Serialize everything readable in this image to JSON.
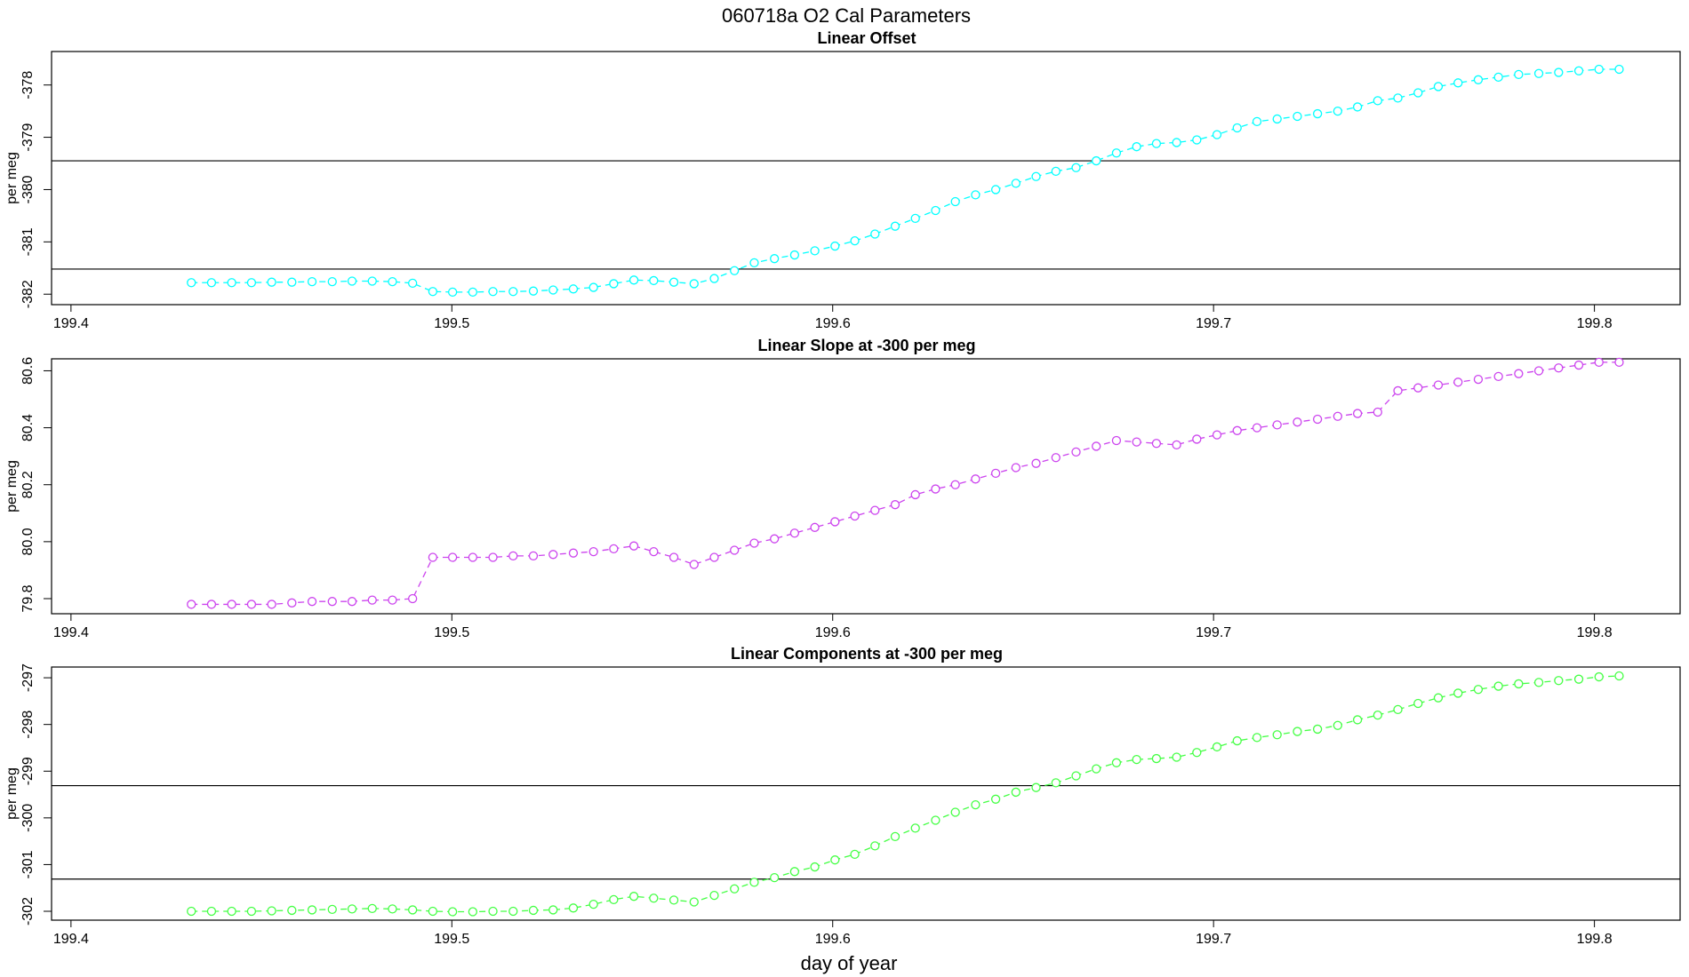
{
  "title": "060718a   O2 Cal Parameters",
  "xlabel": "day of year",
  "chart_data": [
    {
      "type": "line",
      "title": "Linear Offset",
      "ylabel": "per meg",
      "x": [
        199.4316,
        199.4369,
        199.4422,
        199.4474,
        199.4527,
        199.458,
        199.4633,
        199.4686,
        199.4738,
        199.4791,
        199.4844,
        199.4897,
        199.495,
        199.5002,
        199.5055,
        199.5108,
        199.5161,
        199.5214,
        199.5266,
        199.5319,
        199.5372,
        199.5425,
        199.5478,
        199.553,
        199.5583,
        199.5636,
        199.5689,
        199.5742,
        199.5794,
        199.5847,
        199.59,
        199.5953,
        199.6006,
        199.6058,
        199.6111,
        199.6164,
        199.6217,
        199.627,
        199.6322,
        199.6375,
        199.6428,
        199.6481,
        199.6534,
        199.6586,
        199.6639,
        199.6692,
        199.6745,
        199.6798,
        199.685,
        199.6903,
        199.6956,
        199.7009,
        199.7062,
        199.7114,
        199.7167,
        199.722,
        199.7273,
        199.7326,
        199.7378,
        199.7431,
        199.7484,
        199.7537,
        199.759,
        199.7642,
        199.7695,
        199.7748,
        199.7801,
        199.7854,
        199.7906,
        199.7959,
        199.8012,
        199.8065
      ],
      "series": [
        {
          "color": "#00ffff",
          "values": [
            -381.78,
            -381.78,
            -381.78,
            -381.78,
            -381.77,
            -381.77,
            -381.76,
            -381.76,
            -381.75,
            -381.75,
            -381.76,
            -381.79,
            -381.95,
            -381.96,
            -381.96,
            -381.95,
            -381.95,
            -381.94,
            -381.92,
            -381.9,
            -381.87,
            -381.8,
            -381.73,
            -381.74,
            -381.77,
            -381.8,
            -381.7,
            -381.55,
            -381.4,
            -381.32,
            -381.25,
            -381.17,
            -381.08,
            -380.98,
            -380.85,
            -380.7,
            -380.55,
            -380.4,
            -380.23,
            -380.1,
            -380.0,
            -379.88,
            -379.75,
            -379.65,
            -379.58,
            -379.45,
            -379.3,
            -379.18,
            -379.12,
            -379.1,
            -379.05,
            -378.95,
            -378.82,
            -378.7,
            -378.65,
            -378.6,
            -378.55,
            -378.5,
            -378.42,
            -378.3,
            -378.25,
            -378.15,
            -378.03,
            -377.96,
            -377.9,
            -377.85,
            -377.8,
            -377.78,
            -377.76,
            -377.73,
            -377.7,
            -377.7
          ]
        }
      ],
      "hlines": [
        -379.45,
        -381.52
      ],
      "xlim": [
        199.3949,
        199.8225
      ],
      "ylim": [
        -382.2,
        -377.36
      ],
      "xticks": [
        199.4,
        199.5,
        199.6,
        199.7,
        199.8
      ],
      "yticks": [
        -382,
        -381,
        -380,
        -379,
        -378
      ]
    },
    {
      "type": "line",
      "title": "Linear Slope at -300 per meg",
      "ylabel": "per meg",
      "x": [
        199.4316,
        199.4369,
        199.4422,
        199.4474,
        199.4527,
        199.458,
        199.4633,
        199.4686,
        199.4738,
        199.4791,
        199.4844,
        199.4897,
        199.495,
        199.5002,
        199.5055,
        199.5108,
        199.5161,
        199.5214,
        199.5266,
        199.5319,
        199.5372,
        199.5425,
        199.5478,
        199.553,
        199.5583,
        199.5636,
        199.5689,
        199.5742,
        199.5794,
        199.5847,
        199.59,
        199.5953,
        199.6006,
        199.6058,
        199.6111,
        199.6164,
        199.6217,
        199.627,
        199.6322,
        199.6375,
        199.6428,
        199.6481,
        199.6534,
        199.6586,
        199.6639,
        199.6692,
        199.6745,
        199.6798,
        199.685,
        199.6903,
        199.6956,
        199.7009,
        199.7062,
        199.7114,
        199.7167,
        199.722,
        199.7273,
        199.7326,
        199.7378,
        199.7431,
        199.7484,
        199.7537,
        199.759,
        199.7642,
        199.7695,
        199.7748,
        199.7801,
        199.7854,
        199.7906,
        199.7959,
        199.8012,
        199.8065
      ],
      "series": [
        {
          "color": "#cc44ee",
          "values": [
            79.78,
            79.78,
            79.78,
            79.78,
            79.78,
            79.785,
            79.79,
            79.79,
            79.79,
            79.795,
            79.795,
            79.8,
            79.945,
            79.945,
            79.945,
            79.945,
            79.95,
            79.95,
            79.955,
            79.96,
            79.965,
            79.975,
            79.985,
            79.965,
            79.945,
            79.92,
            79.945,
            79.97,
            79.995,
            80.01,
            80.03,
            80.05,
            80.07,
            80.09,
            80.11,
            80.13,
            80.165,
            80.185,
            80.2,
            80.22,
            80.24,
            80.26,
            80.275,
            80.295,
            80.315,
            80.335,
            80.355,
            80.35,
            80.345,
            80.34,
            80.36,
            80.375,
            80.39,
            80.4,
            80.41,
            80.42,
            80.43,
            80.44,
            80.45,
            80.455,
            80.53,
            80.54,
            80.55,
            80.56,
            80.57,
            80.58,
            80.59,
            80.6,
            80.61,
            80.62,
            80.63,
            80.63
          ]
        }
      ],
      "hlines": [],
      "xlim": [
        199.3949,
        199.8225
      ],
      "ylim": [
        79.747,
        80.642
      ],
      "xticks": [
        199.4,
        199.5,
        199.6,
        199.7,
        199.8
      ],
      "yticks": [
        79.8,
        {
          "value": 80,
          "label": "80.0"
        },
        80.2,
        80.4,
        80.6
      ]
    },
    {
      "type": "line",
      "title": "Linear Components at -300 per meg",
      "ylabel": "per meg",
      "x": [
        199.4316,
        199.4369,
        199.4422,
        199.4474,
        199.4527,
        199.458,
        199.4633,
        199.4686,
        199.4738,
        199.4791,
        199.4844,
        199.4897,
        199.495,
        199.5002,
        199.5055,
        199.5108,
        199.5161,
        199.5214,
        199.5266,
        199.5319,
        199.5372,
        199.5425,
        199.5478,
        199.553,
        199.5583,
        199.5636,
        199.5689,
        199.5742,
        199.5794,
        199.5847,
        199.59,
        199.5953,
        199.6006,
        199.6058,
        199.6111,
        199.6164,
        199.6217,
        199.627,
        199.6322,
        199.6375,
        199.6428,
        199.6481,
        199.6534,
        199.6586,
        199.6639,
        199.6692,
        199.6745,
        199.6798,
        199.685,
        199.6903,
        199.6956,
        199.7009,
        199.7062,
        199.7114,
        199.7167,
        199.722,
        199.7273,
        199.7326,
        199.7378,
        199.7431,
        199.7484,
        199.7537,
        199.759,
        199.7642,
        199.7695,
        199.7748,
        199.7801,
        199.7854,
        199.7906,
        199.7959,
        199.8012,
        199.8065
      ],
      "series": [
        {
          "color": "#44ff44",
          "values": [
            -302.0,
            -302.0,
            -302.0,
            -302.0,
            -301.99,
            -301.98,
            -301.97,
            -301.96,
            -301.95,
            -301.94,
            -301.95,
            -301.97,
            -302.0,
            -302.01,
            -302.01,
            -302.0,
            -302.0,
            -301.98,
            -301.97,
            -301.93,
            -301.85,
            -301.75,
            -301.68,
            -301.72,
            -301.76,
            -301.8,
            -301.66,
            -301.52,
            -301.38,
            -301.28,
            -301.15,
            -301.05,
            -300.9,
            -300.78,
            -300.6,
            -300.4,
            -300.22,
            -300.05,
            -299.88,
            -299.72,
            -299.6,
            -299.45,
            -299.35,
            -299.25,
            -299.1,
            -298.95,
            -298.82,
            -298.75,
            -298.73,
            -298.7,
            -298.6,
            -298.48,
            -298.35,
            -298.28,
            -298.22,
            -298.15,
            -298.1,
            -298.02,
            -297.9,
            -297.8,
            -297.68,
            -297.55,
            -297.43,
            -297.33,
            -297.25,
            -297.18,
            -297.13,
            -297.1,
            -297.06,
            -297.03,
            -296.98,
            -296.96
          ]
        }
      ],
      "hlines": [
        -299.31,
        -301.31
      ],
      "xlim": [
        199.3949,
        199.8225
      ],
      "ylim": [
        -302.19,
        -296.77
      ],
      "xticks": [
        199.4,
        199.5,
        199.6,
        199.7,
        199.8
      ],
      "yticks": [
        -302,
        -301,
        -300,
        -299,
        -298,
        -297
      ]
    }
  ]
}
